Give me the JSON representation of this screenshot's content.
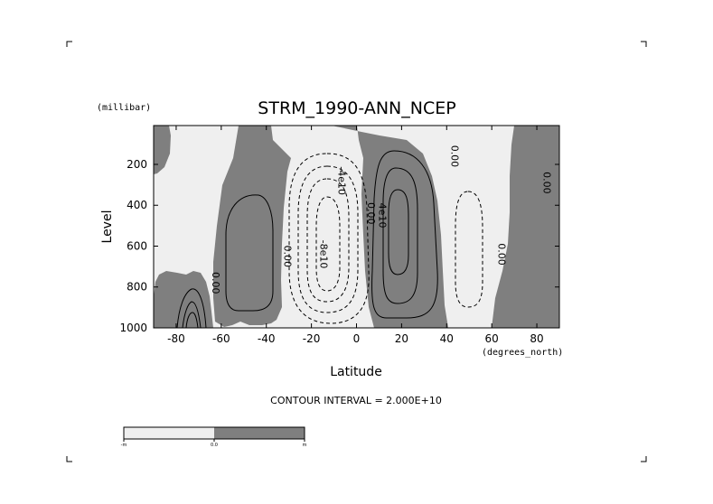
{
  "chart_data": {
    "type": "contour",
    "title": "STRM_1990-ANN_NCEP",
    "xlabel": "Latitude",
    "xunits": "(degrees_north)",
    "ylabel": "Level",
    "yunits": "(millibar)",
    "xlim": [
      -90,
      90
    ],
    "ylim": [
      1000,
      10
    ],
    "x_ticks": [
      -80,
      -60,
      -40,
      -20,
      0,
      20,
      40,
      60,
      80
    ],
    "y_ticks": [
      200,
      400,
      600,
      800,
      1000
    ],
    "contour_interval_text": "CONTOUR INTERVAL = 2.000E+10",
    "contour_labels": [
      {
        "text": "0.00",
        "lat": -64,
        "level": 780
      },
      {
        "text": "0.00",
        "lat": -32,
        "level": 650
      },
      {
        "text": "-4e10",
        "lat": -8,
        "level": 280
      },
      {
        "text": "-8e10",
        "lat": -16,
        "level": 640
      },
      {
        "text": "0.00",
        "lat": 5,
        "level": 440
      },
      {
        "text": "4e10",
        "lat": 10,
        "level": 450
      },
      {
        "text": "0.00",
        "lat": 42,
        "level": 160
      },
      {
        "text": "0.00",
        "lat": 63,
        "level": 640
      },
      {
        "text": "0.00",
        "lat": 83,
        "level": 290
      }
    ],
    "shading": {
      "negative": "#efefef",
      "positive": "#7f7f7f"
    },
    "colorbar": {
      "labels": [
        "-m",
        "0.0",
        "m"
      ],
      "colors": [
        "#efefef",
        "#7f7f7f"
      ]
    }
  }
}
